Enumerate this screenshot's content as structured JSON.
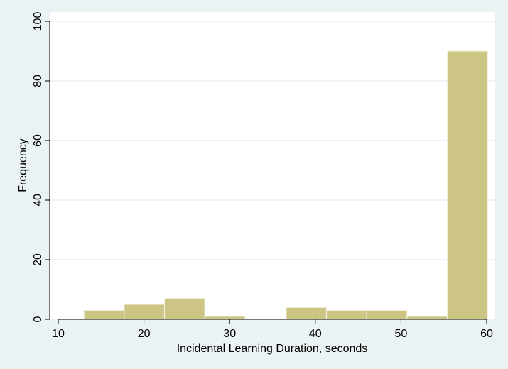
{
  "chart_data": {
    "type": "bar",
    "subtype": "histogram",
    "title": "",
    "xlabel": "Incidental Learning Duration, seconds",
    "ylabel": "Frequency",
    "xlim": [
      10,
      60
    ],
    "ylim": [
      0,
      100
    ],
    "x_ticks": [
      10,
      20,
      30,
      40,
      50,
      60
    ],
    "y_ticks": [
      0,
      20,
      40,
      60,
      80,
      100
    ],
    "grid": true,
    "bins": [
      {
        "x0": 13.0,
        "x1": 17.7,
        "count": 3
      },
      {
        "x0": 17.7,
        "x1": 22.4,
        "count": 5
      },
      {
        "x0": 22.4,
        "x1": 27.1,
        "count": 7
      },
      {
        "x0": 27.1,
        "x1": 31.8,
        "count": 1
      },
      {
        "x0": 31.8,
        "x1": 36.6,
        "count": 0
      },
      {
        "x0": 36.6,
        "x1": 41.3,
        "count": 4
      },
      {
        "x0": 41.3,
        "x1": 46.0,
        "count": 3
      },
      {
        "x0": 46.0,
        "x1": 50.7,
        "count": 3
      },
      {
        "x0": 50.7,
        "x1": 55.4,
        "count": 1
      },
      {
        "x0": 55.4,
        "x1": 60.1,
        "count": 90
      }
    ],
    "colors": {
      "bar_fill": "#cdc584",
      "bar_stroke": "#f2f0dd",
      "plot_background": "#ffffff",
      "outer_background": "#eaf2f3",
      "grid": "#e6eef0",
      "axis": "#000000"
    }
  }
}
